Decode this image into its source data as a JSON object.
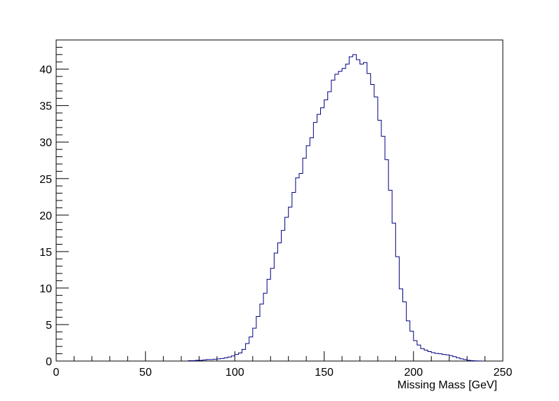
{
  "chart_data": {
    "type": "histogram",
    "title": "",
    "xlabel": "Missing Mass [GeV]",
    "ylabel": "",
    "xlim": [
      0,
      250
    ],
    "ylim": [
      0,
      44
    ],
    "bin_width": 2,
    "bin_start": 74,
    "values": [
      0.05,
      0.05,
      0.1,
      0.1,
      0.15,
      0.2,
      0.2,
      0.25,
      0.3,
      0.35,
      0.45,
      0.55,
      0.7,
      0.9,
      1.1,
      1.6,
      2.4,
      3.3,
      4.5,
      6.1,
      7.8,
      9.3,
      11.2,
      12.7,
      14.8,
      16.2,
      17.9,
      19.7,
      21.1,
      23.1,
      25.1,
      25.7,
      27.8,
      29.5,
      30.6,
      32.7,
      33.8,
      34.7,
      35.8,
      36.9,
      38.5,
      39.3,
      39.7,
      40.1,
      40.7,
      41.7,
      42.0,
      41.3,
      40.7,
      40.9,
      39.4,
      37.9,
      36.2,
      33.0,
      30.8,
      27.6,
      23.4,
      18.9,
      14.3,
      9.9,
      8.1,
      5.5,
      4.1,
      2.8,
      2.2,
      1.7,
      1.5,
      1.3,
      1.15,
      1.05,
      1.0,
      0.9,
      0.85,
      0.75,
      0.6,
      0.45,
      0.3,
      0.2,
      0.1,
      0.05,
      0.02,
      0.01
    ],
    "x_ticks": [
      0,
      50,
      100,
      150,
      200,
      250
    ],
    "y_ticks": [
      0,
      5,
      10,
      15,
      20,
      25,
      30,
      35,
      40
    ],
    "grid": false,
    "line_color": "#000080"
  }
}
